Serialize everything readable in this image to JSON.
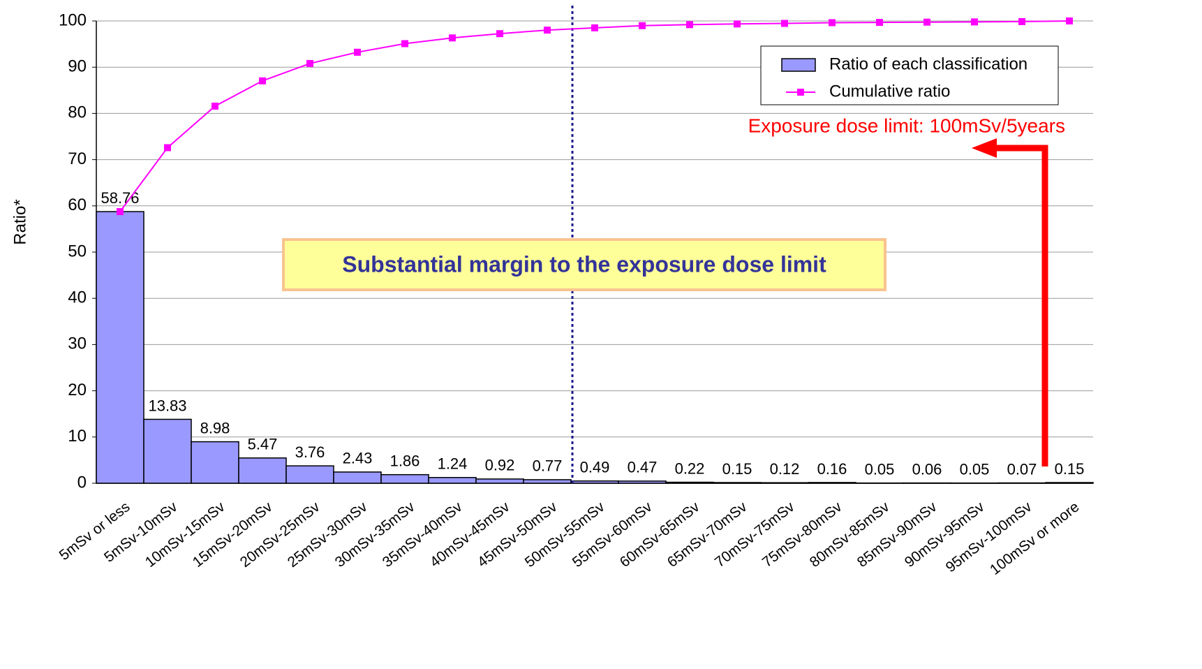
{
  "chart_data": {
    "type": "bar",
    "y_label": "Ratio*",
    "categories": [
      "5mSv or less",
      "5mSv-10mSv",
      "10mSv-15mSv",
      "15mSv-20mSv",
      "20mSv-25mSv",
      "25mSv-30mSv",
      "30mSv-35mSv",
      "35mSv-40mSv",
      "40mSv-45mSv",
      "45mSv-50mSv",
      "50mSv-55mSv",
      "55mSv-60mSv",
      "60mSv-65mSv",
      "65mSv-70mSv",
      "70mSv-75mSv",
      "75mSv-80mSv",
      "80mSv-85mSv",
      "85mSv-90mSv",
      "90mSv-95mSv",
      "95mSv-100mSv",
      "100mSv or more"
    ],
    "series": [
      {
        "name": "Ratio of each classification",
        "type": "bar",
        "color": "#9999ff",
        "values": [
          58.76,
          13.83,
          8.98,
          5.47,
          3.76,
          2.43,
          1.86,
          1.24,
          0.92,
          0.77,
          0.49,
          0.47,
          0.22,
          0.15,
          0.12,
          0.16,
          0.05,
          0.06,
          0.05,
          0.07,
          0.15
        ]
      },
      {
        "name": "Cumulative ratio",
        "type": "line",
        "color": "#ff00ff",
        "values": [
          58.76,
          72.59,
          81.57,
          87.04,
          90.8,
          93.23,
          95.09,
          96.33,
          97.25,
          98.02,
          98.51,
          98.98,
          99.2,
          99.35,
          99.47,
          99.63,
          99.68,
          99.74,
          99.79,
          99.86,
          100
        ]
      }
    ],
    "ylim": [
      0,
      100
    ],
    "yticks": [
      0,
      10,
      20,
      30,
      40,
      50,
      60,
      70,
      80,
      90,
      100
    ],
    "grid": true,
    "legend": "top-right",
    "annotations": [
      "Exposure dose limit: 100mSv/5years",
      "Substantial margin to the exposure dose limit"
    ]
  }
}
